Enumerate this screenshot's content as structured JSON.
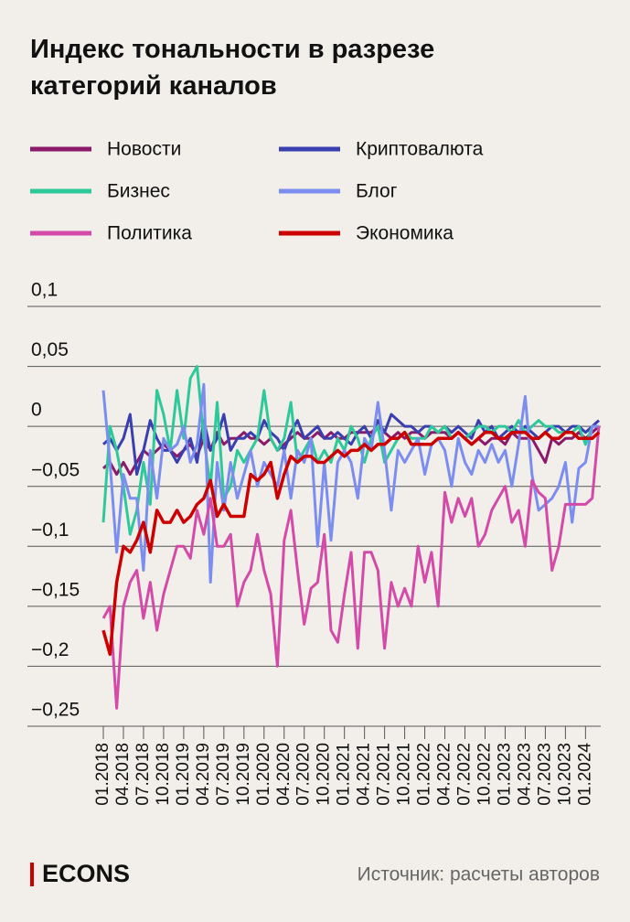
{
  "chart_data": {
    "type": "line",
    "title": "Индекс тональности в разрезе категорий каналов",
    "categories": [
      "01.2018",
      null,
      null,
      "04.2018",
      null,
      null,
      "07.2018",
      null,
      null,
      "10.2018",
      null,
      null,
      "01.2019",
      null,
      null,
      "04.2019",
      null,
      null,
      "07.2019",
      null,
      null,
      "10.2019",
      null,
      null,
      "01.2020",
      null,
      null,
      "04.2020",
      null,
      null,
      "07.2020",
      null,
      null,
      "10.2020",
      null,
      null,
      "01.2021",
      null,
      null,
      "04.2021",
      null,
      null,
      "07.2021",
      null,
      null,
      "10.2021",
      null,
      null,
      "01.2022",
      null,
      null,
      "04.2022",
      null,
      null,
      "07.2022",
      null,
      null,
      "10.2022",
      null,
      null,
      "01.2023",
      null,
      null,
      "04.2023",
      null,
      null,
      "07.2023",
      null,
      null,
      "10.2023",
      null,
      null,
      "01.2024",
      null,
      null
    ],
    "series": [
      {
        "name": "Новости",
        "color": "#8b1a6b",
        "values": [
          -0.035,
          -0.03,
          -0.04,
          -0.03,
          -0.04,
          -0.03,
          -0.02,
          -0.025,
          -0.02,
          -0.015,
          -0.02,
          -0.025,
          -0.02,
          -0.015,
          -0.025,
          -0.01,
          -0.02,
          -0.005,
          -0.015,
          -0.01,
          -0.01,
          -0.005,
          -0.01,
          -0.01,
          -0.015,
          -0.01,
          -0.02,
          -0.015,
          -0.01,
          -0.005,
          -0.01,
          -0.01,
          -0.005,
          -0.01,
          -0.005,
          -0.01,
          -0.01,
          -0.005,
          -0.005,
          -0.005,
          -0.005,
          0,
          -0.005,
          -0.01,
          -0.005,
          -0.01,
          -0.005,
          -0.005,
          -0.01,
          -0.005,
          -0.005,
          -0.005,
          -0.01,
          -0.005,
          -0.01,
          -0.015,
          -0.01,
          -0.015,
          -0.01,
          -0.01,
          -0.015,
          -0.005,
          -0.01,
          -0.01,
          -0.01,
          -0.02,
          -0.03,
          -0.01,
          -0.015,
          -0.01,
          -0.01,
          -0.005,
          -0.01,
          -0.005,
          0
        ]
      },
      {
        "name": "Криптовалюта",
        "color": "#3a3fb0",
        "values": [
          -0.015,
          -0.01,
          -0.02,
          -0.01,
          0.01,
          -0.04,
          -0.02,
          0.005,
          -0.01,
          -0.02,
          -0.02,
          -0.03,
          -0.02,
          -0.01,
          -0.03,
          0.005,
          -0.02,
          -0.01,
          0.01,
          -0.02,
          -0.01,
          -0.01,
          -0.005,
          -0.01,
          0.005,
          -0.005,
          -0.01,
          -0.02,
          -0.005,
          0.005,
          -0.01,
          -0.005,
          0,
          -0.01,
          -0.01,
          -0.005,
          -0.01,
          -0.015,
          -0.005,
          0,
          -0.01,
          0.005,
          -0.005,
          0.01,
          0.005,
          0,
          0,
          -0.005,
          0,
          0,
          -0.005,
          0,
          -0.005,
          0,
          -0.005,
          -0.01,
          0.005,
          -0.005,
          0,
          -0.01,
          -0.005,
          0,
          -0.005,
          0,
          -0.005,
          -0.01,
          -0.005,
          0,
          0,
          -0.005,
          0,
          0,
          -0.005,
          0,
          0.005
        ]
      },
      {
        "name": "Бизнес",
        "color": "#2ec99a",
        "values": [
          -0.08,
          0,
          -0.02,
          -0.05,
          -0.09,
          -0.07,
          -0.03,
          -0.065,
          0.03,
          0.01,
          -0.02,
          0.03,
          -0.01,
          0.04,
          0.05,
          -0.01,
          -0.05,
          0.02,
          -0.06,
          -0.05,
          -0.02,
          -0.03,
          -0.02,
          -0.01,
          0.03,
          -0.01,
          -0.02,
          -0.01,
          0.02,
          -0.03,
          -0.02,
          -0.01,
          -0.03,
          -0.02,
          -0.03,
          -0.01,
          -0.02,
          0,
          -0.01,
          -0.03,
          -0.01,
          0,
          -0.03,
          -0.02,
          -0.01,
          -0.005,
          -0.01,
          -0.01,
          -0.01,
          0,
          -0.005,
          0,
          -0.01,
          -0.005,
          -0.01,
          -0.005,
          0,
          0,
          -0.005,
          0,
          0,
          -0.005,
          0.005,
          -0.005,
          0,
          0.005,
          0,
          0,
          -0.005,
          -0.005,
          -0.005,
          0,
          -0.015,
          0,
          0
        ]
      },
      {
        "name": "Блог",
        "color": "#7b8ef0",
        "values": [
          0.03,
          -0.03,
          -0.105,
          -0.04,
          -0.06,
          -0.06,
          -0.12,
          -0.02,
          -0.06,
          -0.01,
          -0.02,
          -0.015,
          0,
          -0.03,
          -0.015,
          0.035,
          -0.13,
          -0.03,
          -0.07,
          -0.03,
          -0.06,
          -0.04,
          -0.02,
          -0.05,
          -0.03,
          -0.04,
          -0.05,
          -0.02,
          -0.06,
          -0.02,
          -0.03,
          -0.01,
          -0.1,
          -0.03,
          -0.095,
          -0.03,
          -0.02,
          -0.03,
          -0.06,
          -0.01,
          -0.02,
          0.02,
          -0.02,
          -0.07,
          -0.02,
          -0.03,
          -0.02,
          -0.01,
          -0.04,
          -0.015,
          -0.01,
          -0.02,
          -0.05,
          -0.01,
          -0.03,
          -0.04,
          -0.02,
          -0.03,
          -0.015,
          -0.03,
          -0.02,
          -0.05,
          -0.015,
          0.025,
          -0.04,
          -0.07,
          -0.065,
          -0.06,
          -0.05,
          -0.03,
          -0.08,
          -0.035,
          -0.03,
          0,
          0
        ]
      },
      {
        "name": "Политика",
        "color": "#d44aa8",
        "values": [
          -0.16,
          -0.15,
          -0.235,
          -0.15,
          -0.13,
          -0.12,
          -0.16,
          -0.13,
          -0.17,
          -0.14,
          -0.12,
          -0.1,
          -0.1,
          -0.11,
          -0.07,
          -0.09,
          -0.06,
          -0.1,
          -0.1,
          -0.09,
          -0.15,
          -0.13,
          -0.12,
          -0.09,
          -0.12,
          -0.14,
          -0.2,
          -0.095,
          -0.07,
          -0.12,
          -0.165,
          -0.135,
          -0.13,
          -0.09,
          -0.17,
          -0.18,
          -0.14,
          -0.105,
          -0.185,
          -0.105,
          -0.105,
          -0.12,
          -0.185,
          -0.13,
          -0.15,
          -0.135,
          -0.15,
          -0.1,
          -0.13,
          -0.105,
          -0.15,
          -0.055,
          -0.08,
          -0.06,
          -0.075,
          -0.06,
          -0.1,
          -0.09,
          -0.07,
          -0.06,
          -0.05,
          -0.08,
          -0.07,
          -0.1,
          -0.045,
          -0.055,
          -0.06,
          -0.12,
          -0.1,
          -0.065,
          -0.065,
          -0.065,
          -0.065,
          -0.06,
          0
        ]
      },
      {
        "name": "Экономика",
        "color": "#cc0000",
        "values": [
          -0.17,
          -0.19,
          -0.13,
          -0.1,
          -0.105,
          -0.095,
          -0.08,
          -0.105,
          -0.07,
          -0.08,
          -0.08,
          -0.07,
          -0.08,
          -0.075,
          -0.065,
          -0.06,
          -0.045,
          -0.075,
          -0.065,
          -0.075,
          -0.075,
          -0.075,
          -0.04,
          -0.045,
          -0.04,
          -0.03,
          -0.06,
          -0.04,
          -0.025,
          -0.03,
          -0.025,
          -0.025,
          -0.03,
          -0.03,
          -0.025,
          -0.02,
          -0.025,
          -0.02,
          -0.02,
          -0.015,
          -0.02,
          -0.015,
          -0.015,
          -0.01,
          -0.01,
          -0.005,
          -0.015,
          -0.015,
          -0.015,
          -0.015,
          -0.01,
          -0.01,
          -0.01,
          -0.005,
          -0.01,
          -0.015,
          -0.01,
          -0.005,
          -0.005,
          -0.01,
          -0.01,
          -0.005,
          -0.005,
          -0.005,
          -0.01,
          -0.01,
          -0.005,
          -0.01,
          -0.01,
          -0.005,
          -0.005,
          -0.01,
          -0.01,
          -0.01,
          -0.005
        ]
      }
    ],
    "ylim": [
      -0.25,
      0.1
    ],
    "yticks": [
      {
        "value": 0.1,
        "label": "0,1"
      },
      {
        "value": 0.05,
        "label": "0,05"
      },
      0,
      {
        "value": -0.05,
        "label": "−0,05"
      },
      {
        "value": -0.1,
        "label": "−0,1"
      },
      {
        "value": -0.15,
        "label": "−0,15"
      },
      {
        "value": -0.2,
        "label": "−0,2"
      },
      {
        "value": -0.25,
        "label": "−0,25"
      }
    ],
    "grid": true,
    "logo": "ECONS",
    "source": "Источник: расчеты авторов"
  }
}
